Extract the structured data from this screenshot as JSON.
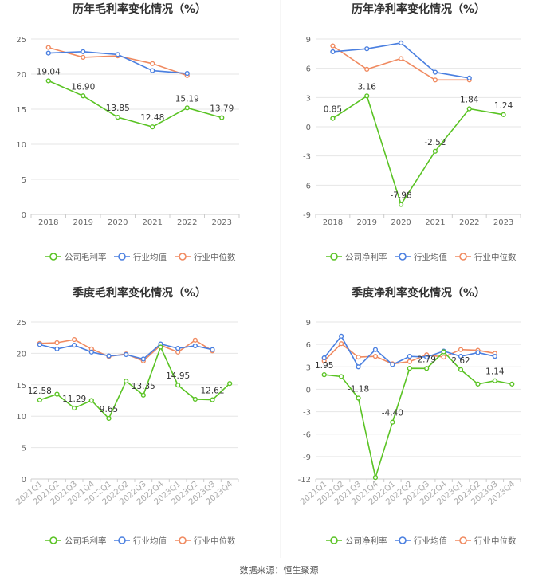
{
  "source_label": "数据来源：恒生聚源",
  "colors": {
    "company": "#5ac324",
    "industry_avg": "#4a7fe0",
    "industry_median": "#f08a60",
    "grid": "#e6e6e6",
    "axis": "#999999",
    "text": "#666666",
    "label": "#333333",
    "title": "#333333"
  },
  "chart_data": [
    {
      "type": "line",
      "title": "历年毛利率变化情况（%）",
      "categories": [
        "2018",
        "2019",
        "2020",
        "2021",
        "2022",
        "2023"
      ],
      "ylim": [
        0,
        25
      ],
      "yticks": [
        0,
        5,
        10,
        15,
        20,
        25
      ],
      "ytick_labels": [
        "0",
        "5",
        "10",
        "15",
        "20",
        "25"
      ],
      "legend": {
        "placement": "bottom",
        "entries": [
          "公司毛利率",
          "行业均值",
          "行业中位数"
        ]
      },
      "series": [
        {
          "name": "公司毛利率",
          "key": "company",
          "values": [
            19.04,
            16.9,
            13.85,
            12.48,
            15.19,
            13.79
          ],
          "labels": [
            "19.04",
            "16.90",
            "13.85",
            "12.48",
            "15.19",
            "13.79"
          ]
        },
        {
          "name": "行业均值",
          "key": "industry_avg",
          "values": [
            23.0,
            23.2,
            22.8,
            20.5,
            20.1,
            null
          ]
        },
        {
          "name": "行业中位数",
          "key": "industry_median",
          "values": [
            23.8,
            22.4,
            22.6,
            21.5,
            19.8,
            null
          ]
        }
      ]
    },
    {
      "type": "line",
      "title": "历年净利率变化情况（%）",
      "categories": [
        "2018",
        "2019",
        "2020",
        "2021",
        "2022",
        "2023"
      ],
      "ylim": [
        -9,
        9
      ],
      "yticks": [
        -9,
        -6,
        -3,
        0,
        3,
        6,
        9
      ],
      "ytick_labels": [
        "-9",
        "-6",
        "-3",
        "0",
        "3",
        "6",
        "9"
      ],
      "legend": {
        "placement": "bottom",
        "entries": [
          "公司净利率",
          "行业均值",
          "行业中位数"
        ]
      },
      "series": [
        {
          "name": "公司净利率",
          "key": "company",
          "values": [
            0.85,
            3.16,
            -7.98,
            -2.52,
            1.84,
            1.24
          ],
          "labels": [
            "0.85",
            "3.16",
            "-7.98",
            "-2.52",
            "1.84",
            "1.24"
          ]
        },
        {
          "name": "行业均值",
          "key": "industry_avg",
          "values": [
            7.7,
            8.0,
            8.6,
            5.6,
            5.0,
            null
          ]
        },
        {
          "name": "行业中位数",
          "key": "industry_median",
          "values": [
            8.3,
            5.9,
            7.0,
            4.8,
            4.8,
            null
          ]
        }
      ]
    },
    {
      "type": "line",
      "title": "季度毛利率变化情况（%）",
      "categories": [
        "2021Q1",
        "2021Q2",
        "2021Q3",
        "2021Q4",
        "2022Q1",
        "2022Q2",
        "2022Q3",
        "2022Q4",
        "2023Q1",
        "2023Q2",
        "2023Q3",
        "2023Q4"
      ],
      "ylim": [
        0,
        25
      ],
      "yticks": [
        0,
        5,
        10,
        15,
        20,
        25
      ],
      "ytick_labels": [
        "0",
        "5",
        "10",
        "15",
        "20",
        "25"
      ],
      "legend": {
        "placement": "bottom",
        "entries": [
          "公司毛利率",
          "行业均值",
          "行业中位数"
        ]
      },
      "series": [
        {
          "name": "公司毛利率",
          "key": "company",
          "values": [
            12.58,
            13.5,
            11.29,
            12.5,
            9.65,
            15.6,
            13.35,
            21.0,
            14.95,
            12.7,
            12.61,
            15.2
          ],
          "labels": [
            "12.58",
            "",
            "11.29",
            "",
            "9.65",
            "",
            "13.35",
            "",
            "14.95",
            "",
            "12.61",
            ""
          ]
        },
        {
          "name": "行业均值",
          "key": "industry_avg",
          "values": [
            21.4,
            20.7,
            21.3,
            20.2,
            19.6,
            19.8,
            19.1,
            21.5,
            20.8,
            21.2,
            20.6,
            null
          ]
        },
        {
          "name": "行业中位数",
          "key": "industry_median",
          "values": [
            21.6,
            21.7,
            22.2,
            20.7,
            19.5,
            19.9,
            18.8,
            21.3,
            20.2,
            22.1,
            20.4,
            null
          ]
        }
      ]
    },
    {
      "type": "line",
      "title": "季度净利率变化情况（%）",
      "categories": [
        "2021Q1",
        "2021Q2",
        "2021Q3",
        "2021Q4",
        "2022Q1",
        "2022Q2",
        "2022Q3",
        "2022Q4",
        "2023Q1",
        "2023Q2",
        "2023Q3",
        "2023Q4"
      ],
      "ylim": [
        -12,
        9
      ],
      "yticks": [
        -12,
        -9,
        -6,
        -3,
        0,
        3,
        6,
        9
      ],
      "ytick_labels": [
        "-12",
        "-9",
        "-6",
        "-3",
        "0",
        "3",
        "6",
        "9"
      ],
      "legend": {
        "placement": "bottom",
        "entries": [
          "公司净利率",
          "行业均值",
          "行业中位数"
        ]
      },
      "series": [
        {
          "name": "公司净利率",
          "key": "company",
          "values": [
            1.95,
            1.7,
            -1.18,
            -11.8,
            -4.4,
            2.8,
            2.79,
            5.0,
            2.62,
            0.7,
            1.14,
            0.7
          ],
          "labels": [
            "1.95",
            "",
            "-1.18",
            "",
            "-4.40",
            "",
            "2.79",
            "",
            "2.62",
            "",
            "1.14",
            ""
          ]
        },
        {
          "name": "行业均值",
          "key": "industry_avg",
          "values": [
            4.2,
            7.1,
            3.0,
            5.3,
            3.3,
            4.4,
            4.3,
            5.1,
            4.4,
            4.9,
            4.4,
            null
          ]
        },
        {
          "name": "行业中位数",
          "key": "industry_median",
          "values": [
            3.8,
            6.1,
            4.3,
            4.4,
            3.4,
            3.7,
            4.6,
            4.3,
            5.3,
            5.2,
            4.8,
            null
          ]
        }
      ]
    }
  ]
}
